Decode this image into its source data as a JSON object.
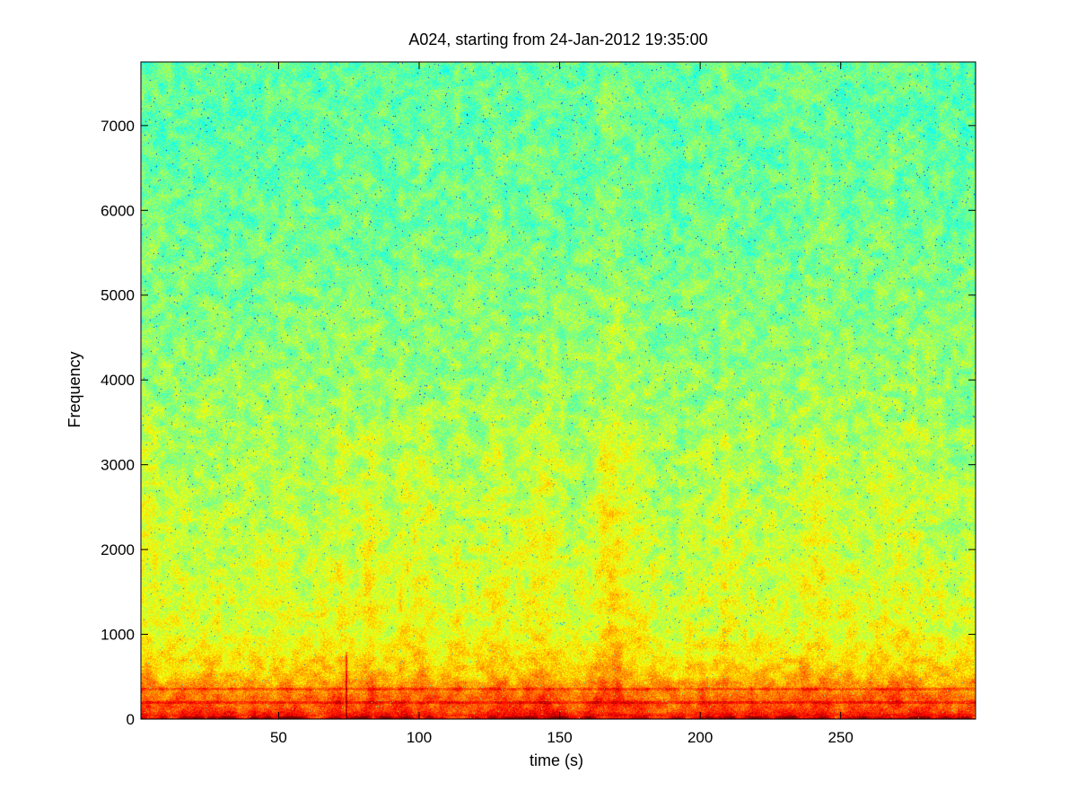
{
  "chart_data": {
    "type": "heatmap",
    "title": "A024, starting from 24-Jan-2012 19:35:00",
    "xlabel": "time (s)",
    "ylabel": "Frequency",
    "xlim": [
      1,
      298
    ],
    "ylim": [
      0,
      7750
    ],
    "xticks": [
      50,
      100,
      150,
      200,
      250
    ],
    "yticks": [
      0,
      1000,
      2000,
      3000,
      4000,
      5000,
      6000,
      7000
    ],
    "colormap": "jet",
    "grid": false,
    "legend": "none",
    "power_profile": {
      "frequency": [
        0,
        30,
        100,
        200,
        350,
        500,
        1000,
        2000,
        3000,
        4000,
        5000,
        6000,
        7000,
        7750
      ],
      "relative_level": [
        0.97,
        0.88,
        0.8,
        0.79,
        0.74,
        0.68,
        0.6,
        0.57,
        0.55,
        0.52,
        0.5,
        0.48,
        0.47,
        0.47
      ]
    },
    "notable_features": [
      {
        "kind": "narrowband line",
        "frequency": 200
      },
      {
        "kind": "narrowband line",
        "frequency": 360
      },
      {
        "kind": "vertical line",
        "time": 74
      }
    ],
    "colors": {
      "low": "#2ee8b4",
      "mid": "#b8f040",
      "high": "#ffe800",
      "peak": "#c01010"
    }
  }
}
